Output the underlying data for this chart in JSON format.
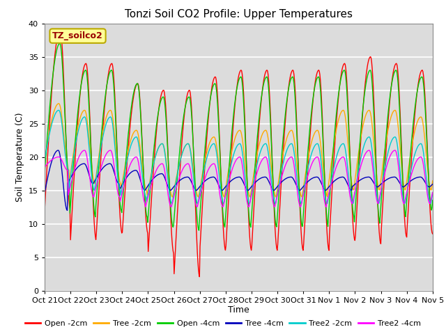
{
  "title": "Tonzi Soil CO2 Profile: Upper Temperatures",
  "xlabel": "Time",
  "ylabel": "Soil Temperature (C)",
  "ylim": [
    0,
    40
  ],
  "x_tick_labels": [
    "Oct 21",
    "Oct 22",
    "Oct 23",
    "Oct 24",
    "Oct 25",
    "Oct 26",
    "Oct 27",
    "Oct 28",
    "Oct 29",
    "Oct 30",
    "Oct 31",
    "Nov 1",
    "Nov 2",
    "Nov 3",
    "Nov 4",
    "Nov 5"
  ],
  "legend_labels": [
    "Open -2cm",
    "Tree -2cm",
    "Open -4cm",
    "Tree -4cm",
    "Tree2 -2cm",
    "Tree2 -4cm"
  ],
  "legend_colors": [
    "#ff0000",
    "#ffaa00",
    "#00cc00",
    "#0000bb",
    "#00cccc",
    "#ff00ff"
  ],
  "annotation_text": "TZ_soilco2",
  "annotation_bg": "#ffff99",
  "annotation_border": "#bbaa00",
  "bg_color": "#dcdcdc",
  "n_cycles": 15,
  "open2_max": [
    39,
    34,
    34,
    31,
    30,
    30,
    32,
    33,
    33,
    33,
    33,
    34,
    35,
    34,
    33
  ],
  "open2_min": [
    12,
    7.5,
    8.5,
    8.5,
    5.5,
    2.0,
    6,
    6,
    6,
    6,
    6,
    7.5,
    7,
    8,
    8.5
  ],
  "tree2_max": [
    28,
    27,
    27,
    24,
    22,
    22,
    23,
    24,
    24,
    24,
    24,
    27,
    27,
    27,
    26
  ],
  "tree2_min": [
    18,
    16,
    16,
    15,
    14,
    14,
    14,
    14,
    14,
    14,
    14,
    15,
    15,
    15,
    15
  ],
  "open4_max": [
    37,
    33,
    33,
    31,
    29,
    29,
    31,
    32,
    32,
    32,
    32,
    33,
    33,
    33,
    32
  ],
  "open4_min": [
    16,
    11,
    12,
    11,
    9.5,
    9,
    9.5,
    9.5,
    9.5,
    9.5,
    9.5,
    11,
    10,
    11,
    12
  ],
  "tree4_max": [
    21,
    19,
    19,
    18,
    17.5,
    17,
    17,
    17,
    17,
    17,
    17,
    17,
    17,
    17,
    17
  ],
  "tree4_min": [
    12,
    16,
    16,
    15,
    15,
    15,
    15,
    15,
    15,
    15,
    15,
    15,
    15.5,
    15.5,
    15.5
  ],
  "tree22_max": [
    27,
    26,
    26,
    23,
    22,
    22,
    22,
    22,
    22,
    22,
    22,
    22,
    23,
    23,
    22
  ],
  "tree22_min": [
    18,
    15,
    15,
    14,
    13,
    13,
    13,
    13,
    13,
    13,
    13,
    13,
    13,
    13,
    13
  ],
  "tree24_max": [
    20,
    21,
    21,
    20,
    19,
    19,
    19,
    20,
    20,
    20,
    20,
    20,
    21,
    21,
    20
  ],
  "tree24_min": [
    18,
    14,
    14,
    13,
    12.5,
    12.5,
    12.5,
    12.5,
    12.5,
    12.5,
    12.5,
    13,
    13,
    13,
    13
  ]
}
